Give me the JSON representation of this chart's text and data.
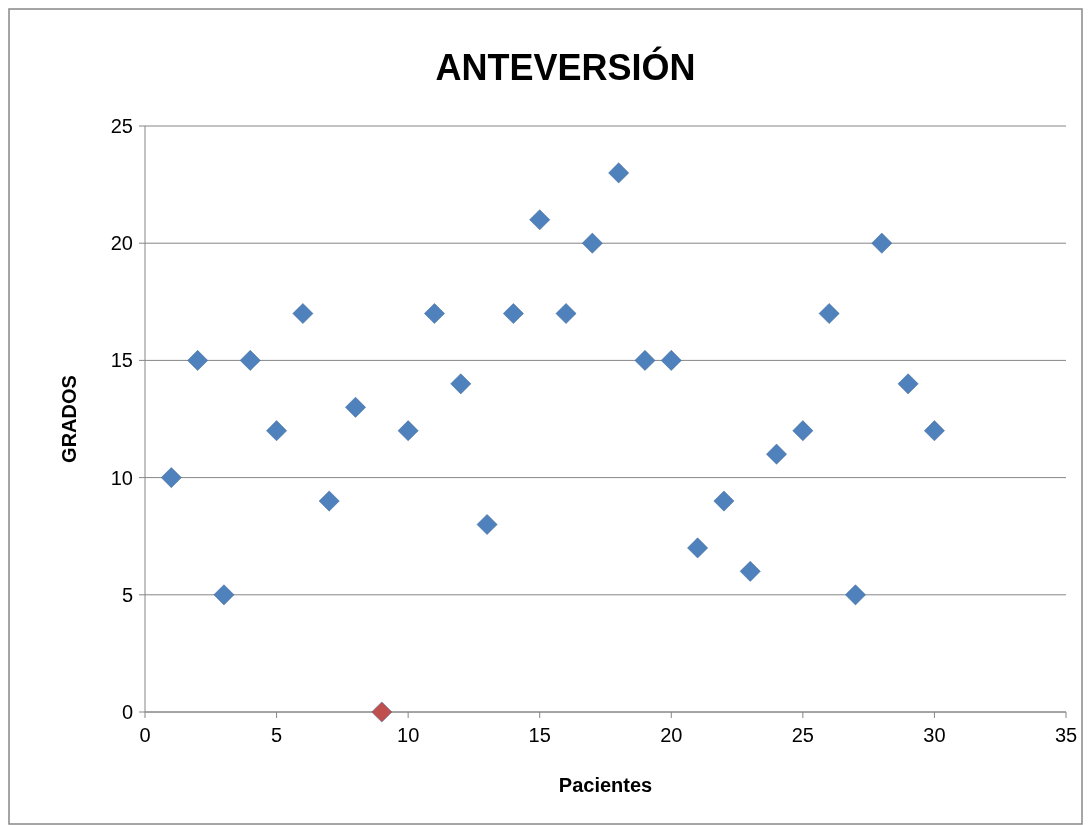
{
  "chart_data": {
    "type": "scatter",
    "title": "ANTEVERSIÓN",
    "xlabel": "Pacientes",
    "ylabel": "GRADOS",
    "x": [
      1,
      2,
      3,
      4,
      5,
      6,
      7,
      8,
      9,
      10,
      11,
      12,
      13,
      14,
      15,
      16,
      17,
      18,
      19,
      20,
      21,
      22,
      23,
      24,
      25,
      26,
      27,
      28,
      29,
      30
    ],
    "values": [
      10,
      15,
      5,
      15,
      12,
      17,
      9,
      13,
      0,
      12,
      17,
      14,
      8,
      17,
      21,
      17,
      20,
      23,
      15,
      15,
      7,
      9,
      6,
      11,
      12,
      17,
      5,
      20,
      14,
      12
    ],
    "colors": [
      "#4f81bd",
      "#4f81bd",
      "#4f81bd",
      "#4f81bd",
      "#4f81bd",
      "#4f81bd",
      "#4f81bd",
      "#4f81bd",
      "#c0504d",
      "#4f81bd",
      "#4f81bd",
      "#4f81bd",
      "#4f81bd",
      "#4f81bd",
      "#4f81bd",
      "#4f81bd",
      "#4f81bd",
      "#4f81bd",
      "#4f81bd",
      "#4f81bd",
      "#4f81bd",
      "#4f81bd",
      "#4f81bd",
      "#4f81bd",
      "#4f81bd",
      "#4f81bd",
      "#4f81bd",
      "#4f81bd",
      "#4f81bd",
      "#4f81bd"
    ],
    "xlim": [
      0,
      35
    ],
    "xticks": [
      0,
      5,
      10,
      15,
      20,
      25,
      30,
      35
    ],
    "ylim": [
      0,
      25
    ],
    "yticks": [
      0,
      5,
      10,
      15,
      20,
      25
    ],
    "grid": "y",
    "marker": "diamond"
  }
}
